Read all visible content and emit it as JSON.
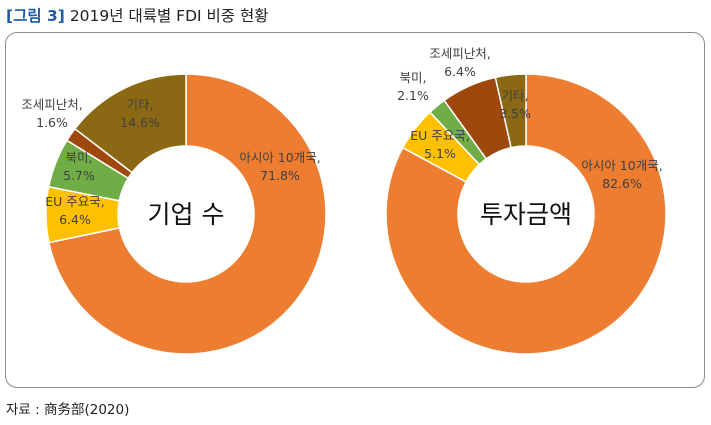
{
  "figure": {
    "number": "[그림 3]",
    "title": "2019년 대륙별 FDI 비중 현황",
    "source": "자료 : 商务部(2020)"
  },
  "chart_data": [
    {
      "type": "pie",
      "center_label": "기업 수",
      "slices": [
        {
          "label": "아시아 10개국",
          "value": 71.8,
          "display": "71.8%",
          "color": "#ED7D31"
        },
        {
          "label": "EU 주요국",
          "value": 6.4,
          "display": "6.4%",
          "color": "#FFC000"
        },
        {
          "label": "북미",
          "value": 5.7,
          "display": "5.7%",
          "color": "#70AD47"
        },
        {
          "label": "조세피난처",
          "value": 1.6,
          "display": "1.6%",
          "color": "#9E480E"
        },
        {
          "label": "기타",
          "value": 14.6,
          "display": "14.6%",
          "color": "#8B6914"
        }
      ]
    },
    {
      "type": "pie",
      "center_label": "투자금액",
      "slices": [
        {
          "label": "아시아 10개국",
          "value": 82.6,
          "display": "82.6%",
          "color": "#ED7D31"
        },
        {
          "label": "EU 주요국",
          "value": 5.1,
          "display": "5.1%",
          "color": "#FFC000"
        },
        {
          "label": "북미",
          "value": 2.1,
          "display": "2.1%",
          "color": "#70AD47"
        },
        {
          "label": "조세피난처",
          "value": 6.4,
          "display": "6.4%",
          "color": "#9E480E"
        },
        {
          "label": "기타",
          "value": 3.5,
          "display": "3.5%",
          "color": "#8B6914"
        }
      ]
    }
  ]
}
